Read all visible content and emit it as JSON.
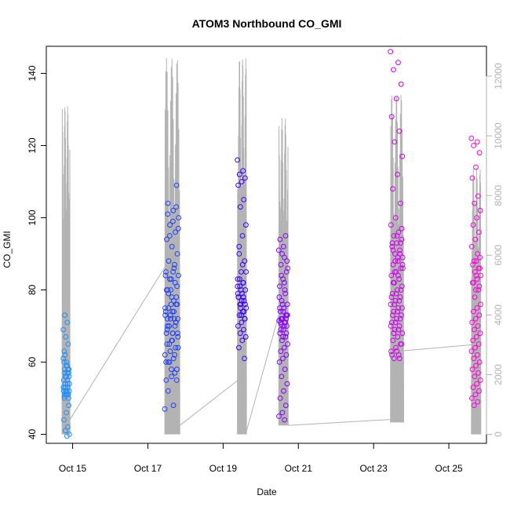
{
  "chart_data": {
    "type": "scatter",
    "title": "ATOM3 Northbound CO_GMI",
    "xlabel": "Date",
    "ylabel": "CO_GMI",
    "x_ticks": [
      "Oct 15",
      "Oct 17",
      "Oct 19",
      "Oct 21",
      "Oct 23",
      "Oct 25"
    ],
    "x_tick_days": [
      15,
      17,
      19,
      21,
      23,
      25
    ],
    "xlim_days": [
      14.3,
      26.0
    ],
    "ylim": [
      37.5,
      147.5
    ],
    "y_ticks": [
      40,
      60,
      80,
      100,
      120,
      140
    ],
    "y2lim": [
      -300,
      13000
    ],
    "y2_ticks": [
      0,
      2000,
      4000,
      6000,
      8000,
      10000,
      12000
    ],
    "grid": false,
    "point_color_gradient": [
      "#1E90FF",
      "#0000FF",
      "#8A00FF",
      "#FF00FF"
    ],
    "altitude_line_color": "#b3b3b3",
    "series": [
      {
        "flight": 1,
        "day_range": [
          14.75,
          14.92
        ],
        "color": "#1E90FF",
        "values": [
          61,
          59,
          58,
          57,
          56,
          55,
          54,
          53,
          52,
          51,
          50.5,
          51,
          52,
          53,
          55,
          57,
          58,
          59,
          60,
          58,
          56,
          54,
          52,
          51,
          50,
          51,
          52,
          53,
          54,
          56,
          60,
          63,
          65,
          67,
          69,
          71,
          73,
          48,
          46,
          44,
          42,
          41,
          40,
          39.5,
          50,
          51,
          52,
          53,
          57,
          62
        ]
      },
      {
        "flight": 2,
        "day_range": [
          17.45,
          17.82
        ],
        "color": "#2040FF",
        "values": [
          47,
          48,
          52,
          55,
          58,
          60,
          62,
          65,
          67,
          68,
          70,
          71,
          72,
          73,
          74,
          75,
          76,
          78,
          80,
          82,
          83,
          84,
          85,
          80,
          78,
          76,
          74,
          72,
          70,
          68,
          66,
          65,
          64,
          63,
          62,
          61,
          60,
          58,
          56,
          55,
          57,
          60,
          64,
          68,
          72,
          76,
          80,
          84,
          86,
          88,
          90,
          92,
          94,
          96,
          98,
          100,
          102,
          104,
          109,
          83,
          85,
          87,
          70,
          72,
          74,
          69,
          71,
          73,
          75,
          77,
          79,
          81,
          66,
          68,
          70,
          95,
          97,
          99,
          101,
          103
        ]
      },
      {
        "flight": 3,
        "day_range": [
          19.38,
          19.62
        ],
        "color": "#3A00FF",
        "values": [
          116,
          113,
          112,
          111,
          110,
          109,
          105,
          103,
          98,
          95,
          92,
          88,
          85,
          83,
          82,
          81,
          80,
          79,
          78,
          77,
          76,
          75,
          74,
          73,
          72,
          71,
          70,
          69,
          68,
          67,
          66,
          64,
          61,
          80,
          81,
          82,
          83,
          76,
          77,
          78,
          74,
          75,
          85,
          87,
          90,
          72,
          73,
          79,
          78,
          76
        ]
      },
      {
        "flight": 4,
        "day_range": [
          20.48,
          20.72
        ],
        "color": "#8A00FF",
        "values": [
          91,
          89,
          87,
          85,
          83,
          81,
          79,
          77,
          76,
          75,
          74,
          73,
          72,
          71.5,
          71,
          70.5,
          70,
          69,
          68,
          67,
          66,
          65,
          64,
          63,
          62,
          61,
          60,
          58,
          56,
          54,
          52,
          50,
          48,
          46,
          45,
          44,
          72,
          73,
          74,
          75,
          71,
          72,
          73,
          70,
          71,
          72,
          76,
          78,
          80,
          84,
          88,
          92,
          94,
          95,
          90,
          86,
          82,
          69,
          68,
          67
        ]
      },
      {
        "flight": 5,
        "day_range": [
          23.45,
          23.78
        ],
        "color": "#D000F0",
        "values": [
          146,
          143,
          141,
          137,
          133,
          128,
          124,
          121,
          117,
          112,
          108,
          104,
          100,
          98,
          96,
          95,
          94,
          93,
          92,
          91,
          90,
          89,
          88,
          87,
          86,
          85,
          84,
          83,
          82,
          81,
          80,
          79,
          78,
          77,
          76,
          75,
          74,
          73,
          72,
          71,
          70,
          69,
          68,
          67,
          66,
          65,
          64,
          63,
          62,
          61,
          97,
          95,
          93,
          90,
          88,
          86,
          84,
          82,
          80,
          79,
          78,
          77,
          76,
          75,
          74,
          73,
          72,
          71,
          70,
          69,
          68,
          65,
          63,
          62,
          61,
          85,
          87,
          89,
          91,
          93
        ]
      },
      {
        "flight": 6,
        "day_range": [
          25.6,
          25.85
        ],
        "color": "#FF00E0",
        "values": [
          122,
          121,
          120,
          118,
          114,
          111,
          106,
          104,
          102,
          100,
          98,
          96,
          94,
          92,
          90,
          88,
          86,
          84,
          82,
          80,
          78,
          76,
          75,
          74,
          73,
          72,
          71,
          70,
          69,
          68,
          67,
          66,
          65,
          64,
          63,
          62,
          61,
          60,
          59,
          58,
          57,
          56,
          55,
          54,
          53,
          52,
          51,
          50,
          49,
          48,
          89,
          88,
          87,
          86,
          85,
          84,
          83,
          82,
          81,
          80
        ]
      }
    ],
    "altitude_track": {
      "description_units": "right axis",
      "segments": [
        {
          "day_range": [
            14.72,
            14.93
          ],
          "max": 11000,
          "min": 0
        },
        {
          "day_range": [
            17.45,
            17.85
          ],
          "max": 12600,
          "min": 0
        },
        {
          "day_range": [
            19.38,
            19.62
          ],
          "max": 12600,
          "min": 0
        },
        {
          "day_range": [
            20.48,
            20.73
          ],
          "max": 10600,
          "min": 300
        },
        {
          "day_range": [
            23.45,
            23.8
          ],
          "max": 11400,
          "min": 400
        },
        {
          "day_range": [
            25.6,
            25.85
          ],
          "max": 8900,
          "min": 0
        }
      ],
      "connectors": [
        {
          "from": [
            14.93,
            500
          ],
          "to": [
            17.45,
            5600
          ]
        },
        {
          "from": [
            17.85,
            300
          ],
          "to": [
            19.38,
            1800
          ]
        },
        {
          "from": [
            19.62,
            100
          ],
          "to": [
            20.48,
            4000
          ]
        },
        {
          "from": [
            20.73,
            300
          ],
          "to": [
            23.45,
            500
          ]
        },
        {
          "from": [
            23.8,
            2800
          ],
          "to": [
            25.6,
            3000
          ]
        }
      ]
    }
  }
}
